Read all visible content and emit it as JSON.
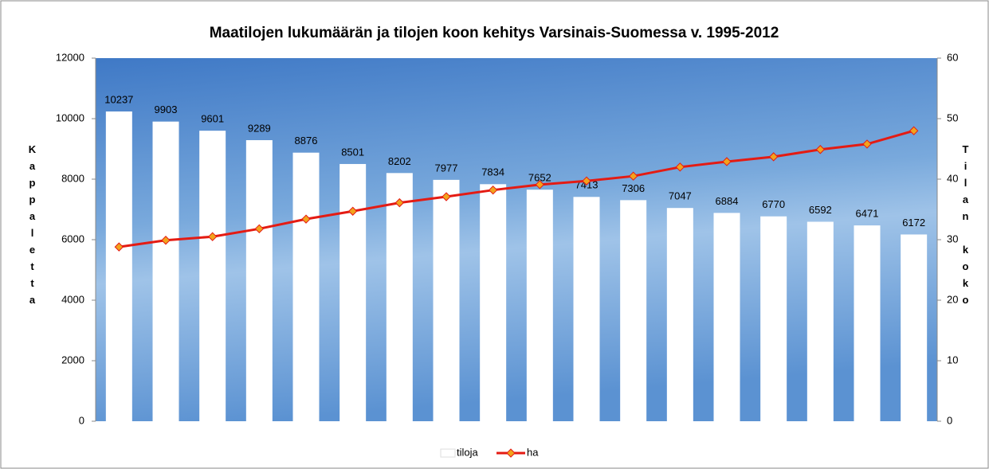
{
  "chart_data": {
    "type": "bar+line",
    "title": "Maatilojen lukumäärän ja tilojen koon kehitys Varsinais-Suomessa v. 1995-2012",
    "ylabel": "Kappaletta",
    "y2label": "Tilan koko",
    "ylim": [
      0,
      12000
    ],
    "yticks": [
      0,
      2000,
      4000,
      6000,
      8000,
      10000,
      12000
    ],
    "y2lim": [
      0,
      60
    ],
    "y2ticks": [
      0,
      10,
      20,
      30,
      40,
      50,
      60
    ],
    "grid": false,
    "legend": "bottom",
    "series": [
      {
        "name": "tiloja",
        "type": "bar",
        "color": "#ffffff",
        "values": [
          10237,
          9903,
          9601,
          9289,
          8876,
          8501,
          8202,
          7977,
          7834,
          7652,
          7413,
          7306,
          7047,
          6884,
          6770,
          6592,
          6471,
          6172
        ]
      },
      {
        "name": "ha",
        "type": "line",
        "axis": "y2",
        "color": "#e41b13",
        "marker_color": "#f2a31c",
        "values": [
          28.8,
          29.9,
          30.5,
          31.8,
          33.4,
          34.7,
          36.1,
          37.1,
          38.2,
          39.1,
          39.7,
          40.5,
          42.0,
          42.9,
          43.7,
          44.9,
          45.8,
          48.0
        ]
      }
    ]
  }
}
